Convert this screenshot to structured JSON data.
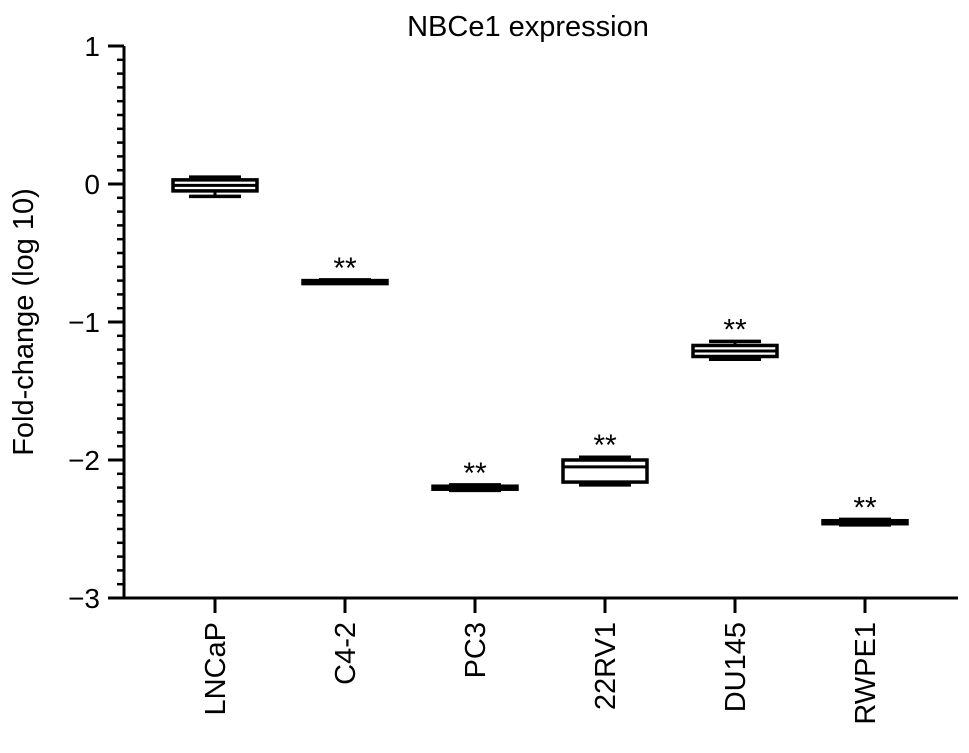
{
  "chart_data": {
    "type": "box",
    "title": "NBCe1 expression",
    "ylabel": "Fold-change (log 10)",
    "xlabel": "",
    "ylim": [
      -3,
      1
    ],
    "yticks": [
      {
        "value": 1,
        "label": "1"
      },
      {
        "value": 0,
        "label": "0"
      },
      {
        "value": -1,
        "label": "−1"
      },
      {
        "value": -2,
        "label": "−2"
      },
      {
        "value": -3,
        "label": "−3"
      }
    ],
    "grid": false,
    "legend": "none",
    "categories": [
      "LNCaP",
      "C4-2",
      "PC3",
      "22RV1",
      "DU145",
      "RWPE1"
    ],
    "boxes": [
      {
        "category": "LNCaP",
        "min": -0.09,
        "q1": -0.05,
        "median": -0.01,
        "q3": 0.03,
        "max": 0.05,
        "annotation": ""
      },
      {
        "category": "C4-2",
        "min": -0.715,
        "q1": -0.71,
        "median": -0.705,
        "q3": -0.7,
        "max": -0.695,
        "annotation": "**"
      },
      {
        "category": "PC3",
        "min": -2.22,
        "q1": -2.21,
        "median": -2.2,
        "q3": -2.19,
        "max": -2.18,
        "annotation": "**"
      },
      {
        "category": "22RV1",
        "min": -2.18,
        "q1": -2.16,
        "median": -2.05,
        "q3": -2.0,
        "max": -1.98,
        "annotation": "**"
      },
      {
        "category": "DU145",
        "min": -1.27,
        "q1": -1.25,
        "median": -1.21,
        "q3": -1.17,
        "max": -1.14,
        "annotation": "**"
      },
      {
        "category": "RWPE1",
        "min": -2.47,
        "q1": -2.46,
        "median": -2.45,
        "q3": -2.44,
        "max": -2.43,
        "annotation": "**"
      }
    ]
  }
}
